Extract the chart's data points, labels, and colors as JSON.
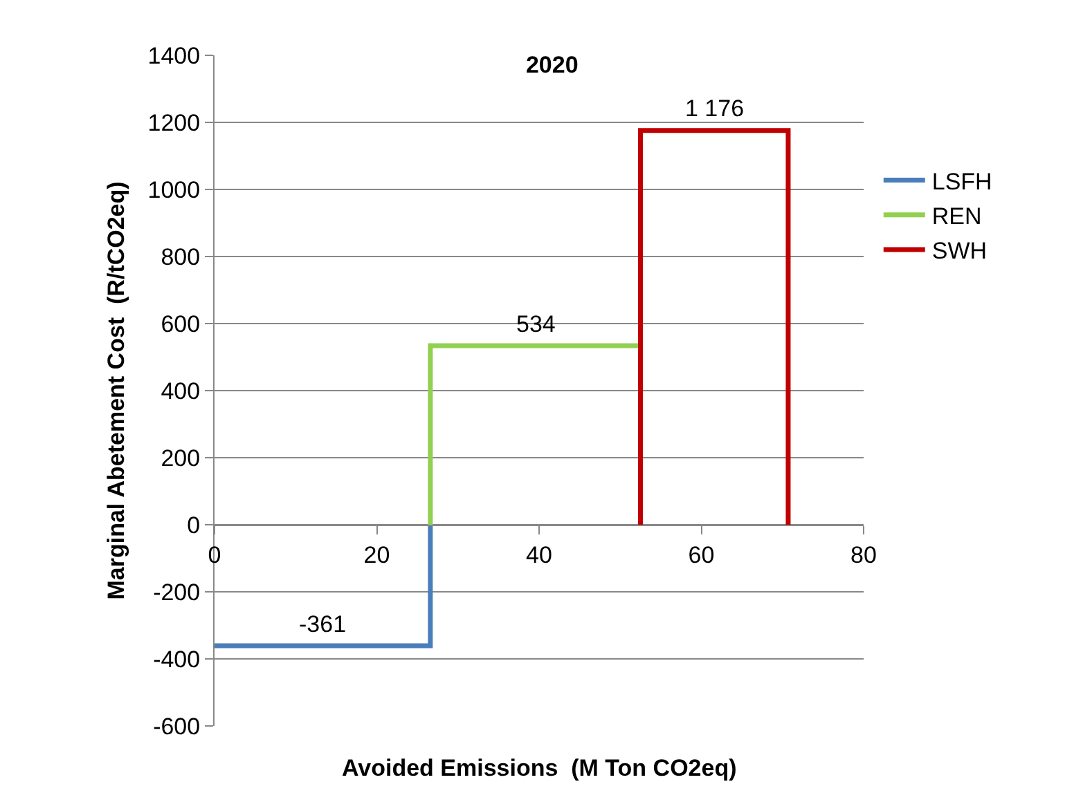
{
  "chart_data": {
    "type": "line",
    "title": "2020",
    "xlabel": "Avoided Emissions  (M Ton CO2eq)",
    "ylabel": "Marginal Abetement Cost  (R/tCO2eq)",
    "series": [
      {
        "name": "LSFH",
        "color": "#4a7ebb",
        "x": [
          0,
          26.6,
          26.6
        ],
        "values": [
          -361,
          -361,
          0
        ]
      },
      {
        "name": "REN",
        "color": "#92d050",
        "x": [
          26.6,
          26.6,
          52.5
        ],
        "values": [
          0,
          534,
          534
        ]
      },
      {
        "name": "SWH",
        "color": "#c00000",
        "x": [
          52.5,
          52.5,
          70.7,
          70.7
        ],
        "values": [
          0,
          1176,
          1176,
          0
        ]
      }
    ],
    "annotations": [
      {
        "text": "-361",
        "x": 13.3,
        "y": -361
      },
      {
        "text": "534",
        "x": 39.5,
        "y": 534
      },
      {
        "text": "1 176",
        "x": 61.6,
        "y": 1176
      }
    ],
    "xlim": [
      0,
      80
    ],
    "xticks": [
      0,
      20,
      40,
      60,
      80
    ],
    "ylim": [
      -600,
      1400
    ],
    "yticks": [
      -600,
      -400,
      -200,
      0,
      200,
      400,
      600,
      800,
      1000,
      1200,
      1400
    ],
    "grid": "y",
    "legend": "right",
    "marker": "none",
    "line_style": "solid"
  }
}
